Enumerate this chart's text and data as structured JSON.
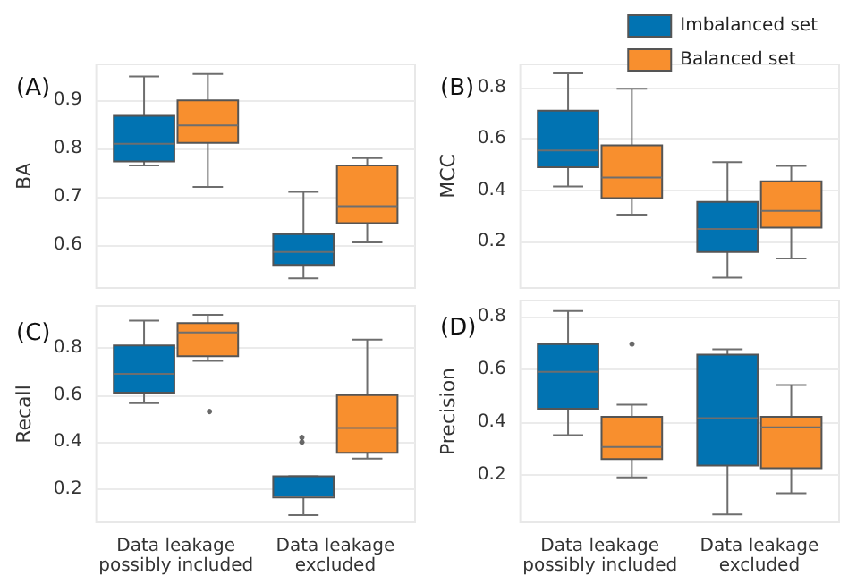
{
  "chart_data": [
    {
      "type": "box",
      "title": "(A)",
      "ylabel": "BA",
      "categories": [
        null,
        null
      ],
      "ylim": [
        0.51,
        0.975
      ],
      "yticks": [
        0.6,
        0.7,
        0.8,
        0.9
      ],
      "grid": "y",
      "tick_labels": "y",
      "series": [
        {
          "color": "#0173b2",
          "boxes": [
            {
              "low": 0.765,
              "q1": 0.773,
              "median": 0.81,
              "q3": 0.868,
              "high": 0.95
            },
            {
              "low": 0.53,
              "q1": 0.558,
              "median": 0.585,
              "q3": 0.622,
              "high": 0.71
            }
          ]
        },
        {
          "color": "#f88f2e",
          "boxes": [
            {
              "low": 0.72,
              "q1": 0.812,
              "median": 0.848,
              "q3": 0.9,
              "high": 0.955
            },
            {
              "low": 0.605,
              "q1": 0.645,
              "median": 0.68,
              "q3": 0.765,
              "high": 0.78
            }
          ]
        }
      ]
    },
    {
      "type": "box",
      "title": "(B)",
      "ylabel": "MCC",
      "categories": [
        null,
        null
      ],
      "ylim": [
        0.02,
        0.89
      ],
      "yticks": [
        0.2,
        0.4,
        0.6,
        0.8
      ],
      "grid": "y",
      "tick_labels": "y",
      "legend": "top right",
      "series": [
        {
          "name": "Imbalanced set",
          "color": "#0173b2",
          "boxes": [
            {
              "low": 0.415,
              "q1": 0.49,
              "median": 0.555,
              "q3": 0.71,
              "high": 0.855
            },
            {
              "low": 0.06,
              "q1": 0.16,
              "median": 0.25,
              "q3": 0.355,
              "high": 0.51
            }
          ]
        },
        {
          "name": "Balanced set",
          "color": "#f88f2e",
          "boxes": [
            {
              "low": 0.305,
              "q1": 0.37,
              "median": 0.45,
              "q3": 0.575,
              "high": 0.795
            },
            {
              "low": 0.135,
              "q1": 0.255,
              "median": 0.32,
              "q3": 0.435,
              "high": 0.495
            }
          ]
        }
      ]
    },
    {
      "type": "box",
      "title": "(C)",
      "ylabel": "Recall",
      "categories": [
        "Data leakage\npossibly included",
        "Data leakage\nexcluded"
      ],
      "ylim": [
        0.06,
        0.978
      ],
      "yticks": [
        0.2,
        0.4,
        0.6,
        0.8
      ],
      "grid": "y",
      "series": [
        {
          "color": "#0173b2",
          "boxes": [
            {
              "low": 0.565,
              "q1": 0.61,
              "median": 0.69,
              "q3": 0.81,
              "high": 0.915
            },
            {
              "low": 0.09,
              "q1": 0.165,
              "median": 0.17,
              "q3": 0.255,
              "high": 0.255,
              "outliers": [
                0.4,
                0.42
              ]
            }
          ]
        },
        {
          "color": "#f88f2e",
          "boxes": [
            {
              "low": 0.745,
              "q1": 0.765,
              "median": 0.865,
              "q3": 0.905,
              "high": 0.94,
              "outliers": [
                0.53
              ]
            },
            {
              "low": 0.33,
              "q1": 0.355,
              "median": 0.46,
              "q3": 0.6,
              "high": 0.835
            }
          ]
        }
      ]
    },
    {
      "type": "box",
      "title": "(D)",
      "ylabel": "Precision",
      "categories": [
        "Data leakage\npossibly included",
        "Data leakage\nexcluded"
      ],
      "ylim": [
        0.02,
        0.86
      ],
      "yticks": [
        0.2,
        0.4,
        0.6,
        0.8
      ],
      "grid": "y",
      "series": [
        {
          "color": "#0173b2",
          "boxes": [
            {
              "low": 0.35,
              "q1": 0.45,
              "median": 0.59,
              "q3": 0.695,
              "high": 0.82
            },
            {
              "low": 0.05,
              "q1": 0.235,
              "median": 0.415,
              "q3": 0.655,
              "high": 0.675
            }
          ]
        },
        {
          "color": "#f88f2e",
          "boxes": [
            {
              "low": 0.19,
              "q1": 0.26,
              "median": 0.305,
              "q3": 0.42,
              "high": 0.465,
              "outliers": [
                0.695
              ]
            },
            {
              "low": 0.13,
              "q1": 0.225,
              "median": 0.38,
              "q3": 0.42,
              "high": 0.54
            }
          ]
        }
      ]
    }
  ]
}
